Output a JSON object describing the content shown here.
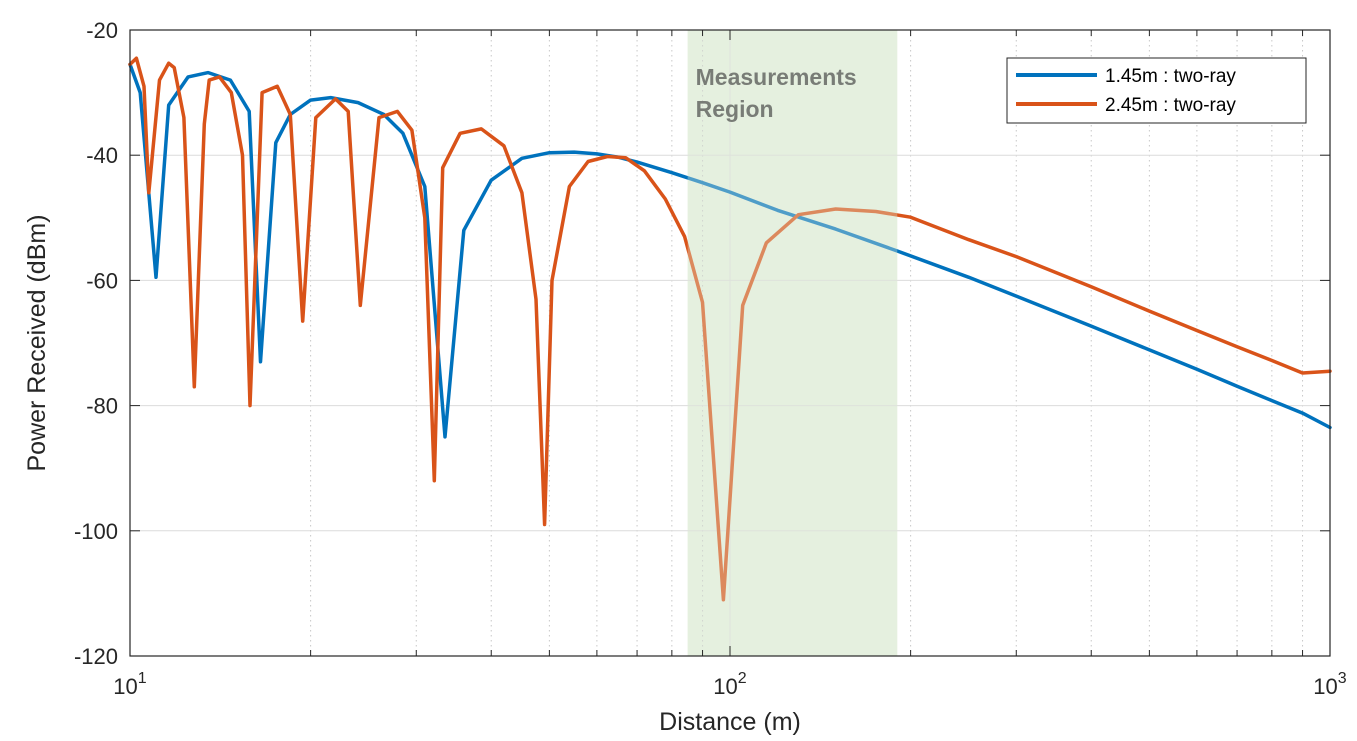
{
  "chart_data": {
    "type": "line",
    "xscale": "log",
    "xlabel": "Distance (m)",
    "ylabel": "Power Received (dBm)",
    "xlim": [
      10,
      1000
    ],
    "ylim": [
      -120,
      -20
    ],
    "grid": true,
    "minor_grid_x": true,
    "x_ticks": [
      10,
      100,
      1000
    ],
    "x_tick_labels": [
      {
        "base": "10",
        "exp": "1"
      },
      {
        "base": "10",
        "exp": "2"
      },
      {
        "base": "10",
        "exp": "3"
      }
    ],
    "y_ticks": [
      -120,
      -100,
      -80,
      -60,
      -40,
      -20
    ],
    "y_tick_labels": [
      "-120",
      "-100",
      "-80",
      "-60",
      "-40",
      "-20"
    ],
    "legend_position": "top-right",
    "shaded_region": {
      "x_range": [
        85,
        190
      ],
      "label_lines": [
        "Measurements",
        "Region"
      ],
      "color": "#e2efdc"
    },
    "series": [
      {
        "name": "1.45m : two-ray",
        "color": "#0072bd",
        "x": [
          10,
          10.4,
          11.05,
          11.6,
          12.5,
          13.5,
          14.7,
          15.8,
          16.5,
          17.5,
          18.5,
          20,
          21.6,
          24,
          26.5,
          28.5,
          31,
          33.5,
          36,
          40,
          45,
          50,
          55,
          60,
          65,
          70,
          80,
          90,
          100,
          120,
          150,
          190,
          250,
          300,
          400,
          500,
          600,
          700,
          800,
          900,
          1000
        ],
        "y": [
          -25.5,
          -30,
          -59.5,
          -32,
          -27.5,
          -26.8,
          -28,
          -33,
          -73,
          -38,
          -33.5,
          -31.2,
          -30.8,
          -31.6,
          -33.5,
          -36.5,
          -45,
          -85,
          -52,
          -44,
          -40.5,
          -39.6,
          -39.5,
          -39.8,
          -40.3,
          -41.1,
          -42.8,
          -44.4,
          -45.9,
          -48.8,
          -51.8,
          -55.3,
          -59.5,
          -62.5,
          -67.3,
          -71.1,
          -74.2,
          -76.9,
          -79.2,
          -81.2,
          -83.5
        ]
      },
      {
        "name": "2.45m : two-ray",
        "color": "#d95319",
        "x": [
          10,
          10.25,
          10.55,
          10.75,
          11.2,
          11.6,
          11.85,
          12.3,
          12.8,
          13.3,
          13.55,
          14.1,
          14.75,
          15.4,
          15.85,
          16.6,
          17.6,
          18.5,
          19.4,
          20.4,
          22,
          23.1,
          24.2,
          26,
          27.9,
          29.5,
          31,
          32.15,
          33.2,
          35.5,
          38.5,
          42,
          45,
          47.5,
          49.1,
          50.5,
          54,
          58,
          62.5,
          67,
          72,
          78,
          84,
          90,
          97.5,
          105,
          115,
          130,
          150,
          175,
          200,
          250,
          300,
          400,
          500,
          600,
          700,
          800,
          900,
          1000
        ],
        "y": [
          -25.5,
          -24.5,
          -29,
          -46,
          -28,
          -25.3,
          -26,
          -34,
          -77,
          -35,
          -28,
          -27.5,
          -30,
          -40,
          -80,
          -30,
          -29,
          -33.5,
          -66.5,
          -34,
          -31,
          -33,
          -64,
          -34,
          -33,
          -36,
          -50,
          -92,
          -42,
          -36.5,
          -35.8,
          -38.5,
          -46,
          -63,
          -99,
          -60,
          -45,
          -41,
          -40.2,
          -40.4,
          -42.5,
          -47,
          -53,
          -63.5,
          -111,
          -64,
          -54,
          -49.5,
          -48.6,
          -49,
          -49.9,
          -53.5,
          -56.2,
          -61,
          -64.9,
          -68,
          -70.6,
          -72.8,
          -74.8,
          -74.5
        ]
      }
    ]
  }
}
